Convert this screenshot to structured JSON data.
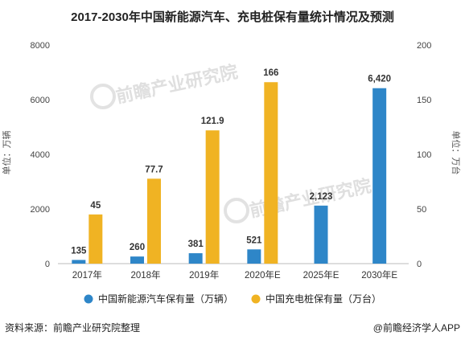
{
  "chart_data": {
    "type": "bar",
    "title": "2017-2030年中国新能源汽车、充电桩保有量统计情况及预测",
    "categories": [
      "2017年",
      "2018年",
      "2019年",
      "2020年E",
      "2025年E",
      "2030年E"
    ],
    "series": [
      {
        "name": "中国新能源汽车保有量（万辆）",
        "axis": "left",
        "color": "#2e86c8",
        "values": [
          135,
          260,
          381,
          521,
          2123,
          6420
        ],
        "labels": [
          "135",
          "260",
          "381",
          "521",
          "2,123",
          "6,420"
        ]
      },
      {
        "name": "中国充电桩保有量（万台）",
        "axis": "right",
        "color": "#f0b323",
        "values": [
          45,
          77.7,
          121.9,
          166,
          null,
          null
        ],
        "labels": [
          "45",
          "77.7",
          "121.9",
          "166",
          "",
          ""
        ]
      }
    ],
    "y_left": {
      "label": "单位：万辆",
      "range": [
        0,
        8000
      ],
      "ticks": [
        "0",
        "2000",
        "4000",
        "6000",
        "8000"
      ]
    },
    "y_right": {
      "label": "单位：万台",
      "range": [
        0,
        200
      ],
      "ticks": [
        "0",
        "50",
        "100",
        "150",
        "200"
      ]
    },
    "grid": false,
    "legend_position": "bottom"
  },
  "watermark": {
    "text1": "前瞻产业研究院",
    "text2": "前瞻产业研究院"
  },
  "footer": {
    "source": "资料来源：前瞻产业研究院整理",
    "credit": "@前瞻经济学人APP"
  }
}
